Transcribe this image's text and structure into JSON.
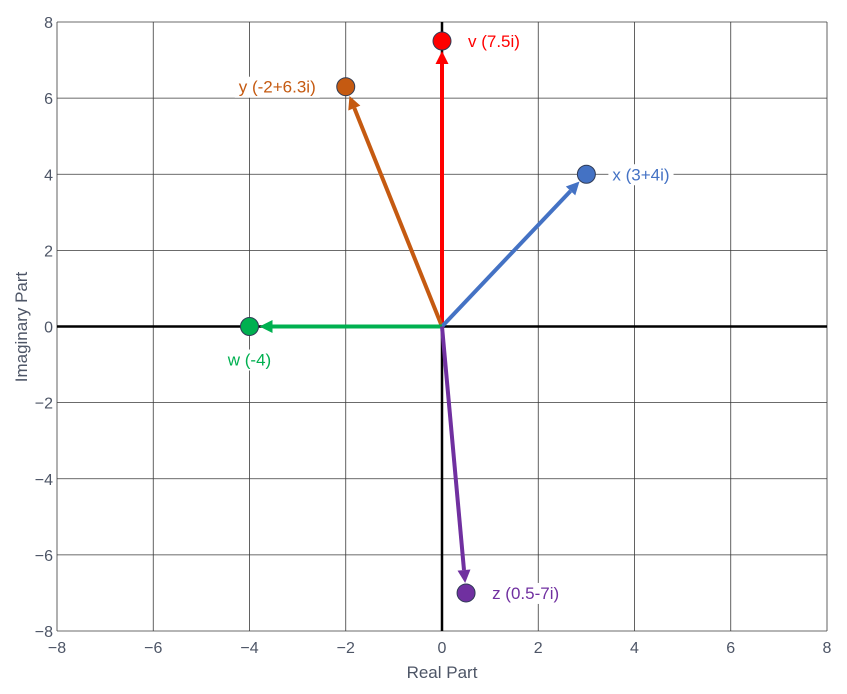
{
  "chart_data": {
    "type": "scatter",
    "title": "",
    "xlabel": "Real Part",
    "ylabel": "Imaginary Part",
    "xlim": [
      -8,
      8
    ],
    "ylim": [
      -8,
      8
    ],
    "xticks": [
      -8,
      -6,
      -4,
      -2,
      0,
      2,
      4,
      6,
      8
    ],
    "yticks": [
      -8,
      -6,
      -4,
      -2,
      0,
      2,
      4,
      6,
      8
    ],
    "tick_labels_x": [
      "−8",
      "−6",
      "−4",
      "−2",
      "0",
      "2",
      "4",
      "6",
      "8"
    ],
    "tick_labels_y": [
      "−8",
      "−6",
      "−4",
      "−2",
      "0",
      "2",
      "4",
      "6",
      "8"
    ],
    "grid": true,
    "zero_lines": true,
    "vectors": [
      {
        "label": "v (7.5i)",
        "x": 0,
        "y": 7.5,
        "color": "#ff0000",
        "label_side": "right"
      },
      {
        "label": "y (-2+6.3i)",
        "x": -2,
        "y": 6.3,
        "color": "#c55a11",
        "label_side": "left"
      },
      {
        "label": "x (3+4i)",
        "x": 3,
        "y": 4,
        "color": "#4472c4",
        "label_side": "right"
      },
      {
        "label": "w (-4)",
        "x": -4,
        "y": 0,
        "color": "#00b050",
        "label_side": "below"
      },
      {
        "label": "z (0.5-7i)",
        "x": 0.5,
        "y": -7,
        "color": "#7030a0",
        "label_side": "right"
      }
    ]
  }
}
